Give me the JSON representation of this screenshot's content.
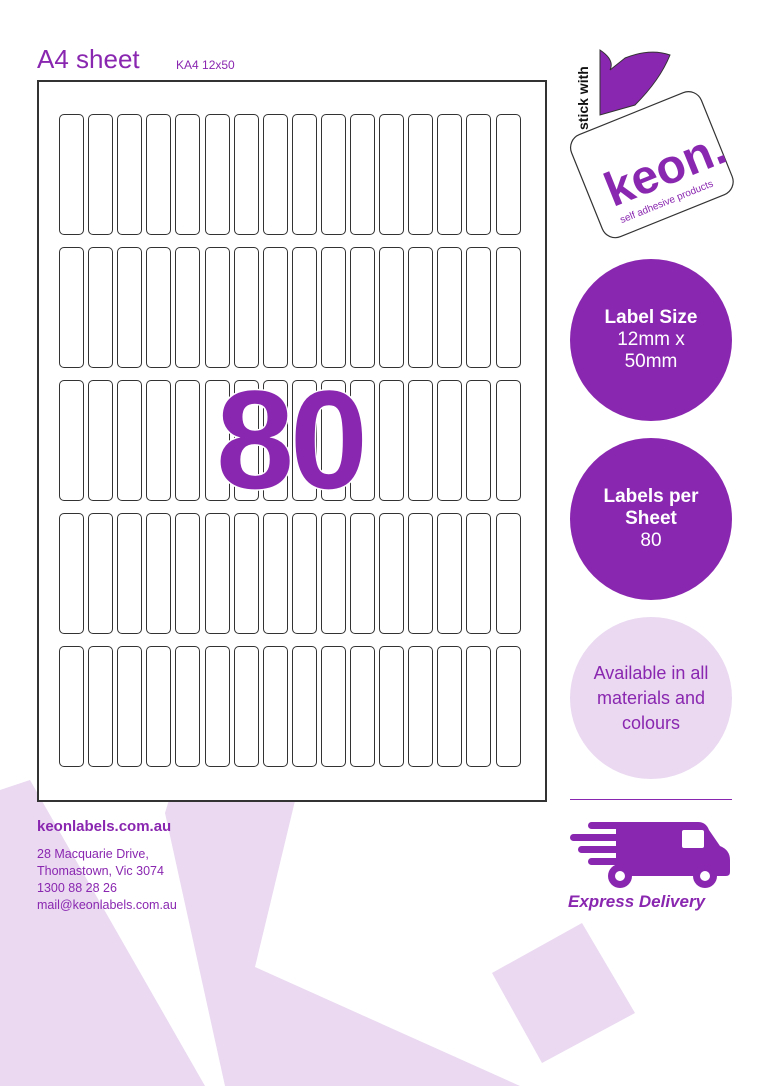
{
  "header": {
    "title": "A4 sheet",
    "code": "KA4 12x50"
  },
  "sheet": {
    "rows": 5,
    "columns": 16,
    "count_display": "80"
  },
  "logo": {
    "tagline": "stick with",
    "brand": "keon.",
    "subtitle": "self adhesive products"
  },
  "info": [
    {
      "title": "Label Size",
      "value": "12mm x 50mm"
    },
    {
      "title": "Labels per Sheet",
      "value": "80"
    },
    {
      "text": "Available in all materials and colours"
    }
  ],
  "footer": {
    "website": "keonlabels.com.au",
    "address_lines": [
      "28 Macquarie Drive,",
      "Thomastown, Vic 3074",
      "1300 88 28 26",
      "mail@keonlabels.com.au"
    ],
    "delivery": "Express Delivery"
  },
  "colors": {
    "brand": "#8a27b0",
    "light": "#ead9f1"
  }
}
